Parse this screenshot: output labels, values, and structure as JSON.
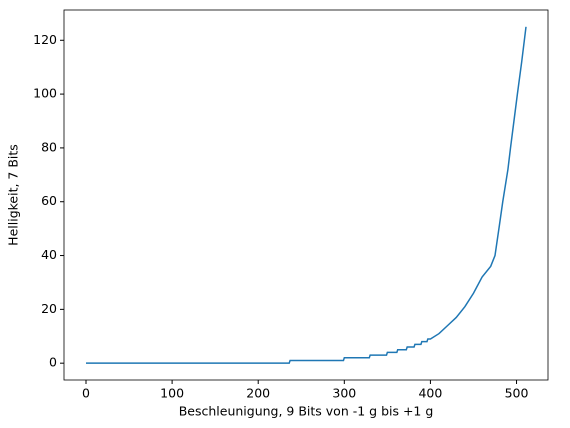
{
  "chart_data": {
    "type": "line",
    "xlabel": "Beschleunigung, 9 Bits von -1 g bis +1 g",
    "ylabel": "Helligkeit, 7 Bits",
    "x": [
      0,
      236,
      237,
      299,
      300,
      329,
      330,
      349,
      350,
      361,
      362,
      372,
      373,
      381,
      382,
      389,
      390,
      396,
      397,
      400,
      410,
      420,
      430,
      440,
      450,
      460,
      470,
      475,
      480,
      484,
      490,
      493,
      497,
      501,
      506,
      511
    ],
    "series": [
      {
        "name": "Helligkeit",
        "color": "#1f77b4",
        "values": [
          0,
          0,
          1,
          1,
          2,
          2,
          3,
          3,
          4,
          4,
          5,
          5,
          6,
          6,
          7,
          7,
          8,
          8,
          9,
          9,
          11,
          14,
          17,
          21,
          26,
          32,
          36,
          40,
          51,
          60,
          72,
          80,
          90,
          100,
          112,
          125
        ]
      }
    ],
    "xlim": [
      -25.55,
      536.55
    ],
    "xticks": [
      0,
      100,
      200,
      300,
      400,
      500
    ],
    "ylim": [
      -6.25,
      131.25
    ],
    "yticks": [
      0,
      20,
      40,
      60,
      80,
      100,
      120
    ]
  }
}
